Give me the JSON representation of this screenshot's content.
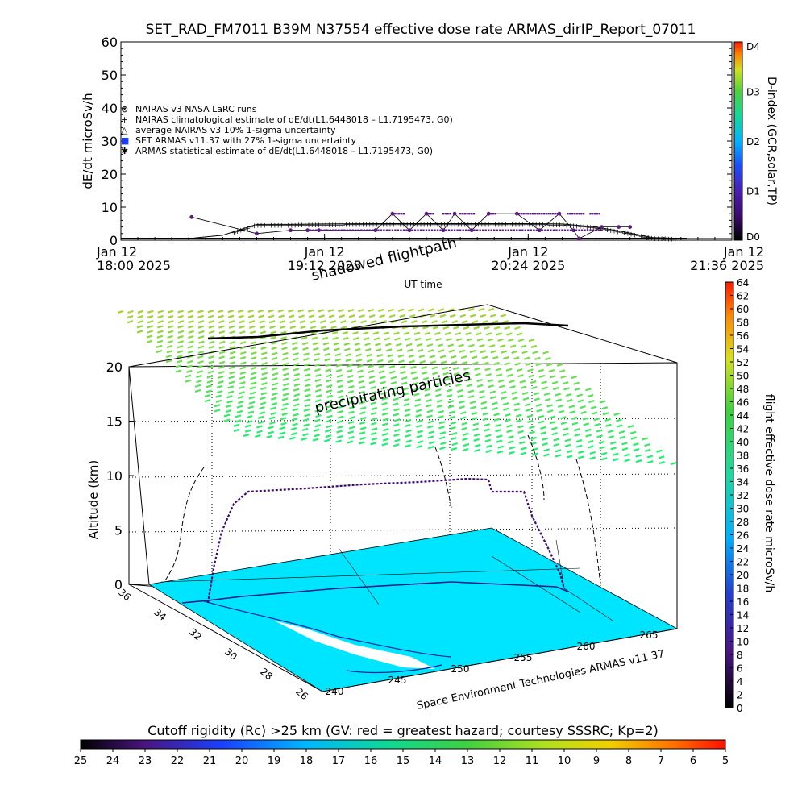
{
  "chart_data": [
    {
      "type": "scatter",
      "title": "SET_RAD_FM7011   B39M N37554 effective dose rate ARMAS_dirIP_Report_07011",
      "xlabel": "UT time",
      "ylabel": "dE/dt microSv/h",
      "ylim": [
        0,
        60
      ],
      "y_ticks": [
        "0",
        "10",
        "20",
        "30",
        "40",
        "50",
        "60"
      ],
      "x_ticks": [
        {
          "day": "Jan 12",
          "time": "18:00 2025"
        },
        {
          "day": "Jan 12",
          "time": "19:12 2025"
        },
        {
          "day": "Jan 12",
          "time": "20:24 2025"
        },
        {
          "day": "Jan 12",
          "time": "21:36 2025"
        }
      ],
      "xlim_minutes": [
        0,
        216
      ],
      "grid": false,
      "legend_position": "upper-left",
      "legend": [
        {
          "symbol": "⊗",
          "label": "NAIRAS v3 NASA LaRC runs"
        },
        {
          "symbol": "+",
          "label": "NAIRAS climatological estimate of dE/dt(L1.6448018 – L1.7195473, G0)"
        },
        {
          "symbol": "△",
          "label": "average NAIRAS v3 10% 1-sigma uncertainty"
        },
        {
          "symbol": "■",
          "label": "SET ARMAS v11.37 with 27% 1-sigma uncertainty"
        },
        {
          "symbol": "✱",
          "label": "ARMAS statistical estimate of dE/dt(L1.6448018 – L1.7195473, G0)"
        }
      ],
      "series": [
        {
          "name": "NAIRAS climatological estimate",
          "color": "#000000",
          "x": [
            0,
            24,
            36,
            48,
            60,
            72,
            90,
            108,
            126,
            144,
            156,
            168,
            178,
            188,
            200,
            216
          ],
          "y": [
            0.5,
            0.5,
            1.5,
            4.8,
            4.8,
            4.9,
            5.0,
            5.0,
            5.0,
            5.0,
            4.9,
            4.0,
            2.5,
            0.8,
            0.5,
            0.5
          ]
        },
        {
          "name": "SET ARMAS v11.37",
          "color": "#5a1e7a",
          "x": [
            25,
            48,
            60,
            66,
            70,
            90,
            96,
            102,
            108,
            114,
            118,
            124,
            130,
            140,
            148,
            155,
            160,
            162,
            170,
            176,
            180
          ],
          "y": [
            7,
            2,
            3,
            3,
            3,
            3,
            8,
            3,
            8,
            3,
            8,
            3,
            8,
            8,
            3,
            8,
            3,
            0.5,
            4,
            4,
            4
          ]
        }
      ],
      "dindex_label": "D-index (GCR,solar,TP)",
      "dindex_levels": [
        "D0",
        "D1",
        "D2",
        "D3",
        "D4"
      ],
      "dindex_values": [
        0,
        1,
        2,
        3,
        4
      ]
    },
    {
      "type": "scatter",
      "subtitle": "shadowed flightpath",
      "annotation": "precipitating particles",
      "credit": "Space Environment Technologies ARMAS v11.37",
      "zlabel": "Altitude (km)",
      "zlim": [
        0,
        20
      ],
      "z_ticks": [
        "0",
        "5",
        "10",
        "15",
        "20"
      ],
      "lat_ticks": [
        "36",
        "34",
        "32",
        "30",
        "28",
        "26"
      ],
      "lon_ticks": [
        "240",
        "245",
        "250",
        "255",
        "260",
        "265"
      ],
      "colorbar_label": "flight effective dose rate microSv/h",
      "colorbar_ticks": [
        "0",
        "2",
        "4",
        "6",
        "8",
        "10",
        "12",
        "14",
        "16",
        "18",
        "20",
        "22",
        "24",
        "26",
        "28",
        "30",
        "32",
        "34",
        "36",
        "38",
        "40",
        "42",
        "44",
        "46",
        "48",
        "50",
        "52",
        "54",
        "56",
        "58",
        "60",
        "62",
        "64"
      ],
      "colorbar_range": [
        0,
        64
      ],
      "flight_track": {
        "lon": [
          242.0,
          243.0,
          244.0,
          246.0,
          250.0,
          255.0,
          259.0,
          261.5,
          262.3,
          263.0
        ],
        "lat": [
          34.5,
          34.6,
          34.2,
          33.8,
          33.0,
          32.0,
          31.2,
          30.8,
          30.6,
          30.3
        ],
        "alt_km": [
          0.0,
          3.0,
          7.5,
          9.5,
          10.0,
          10.5,
          11.0,
          9.5,
          4.0,
          0.0
        ]
      }
    },
    {
      "type": "heatmap",
      "title": "Cutoff rigidity (Rc) >25 km (GV: red = greatest hazard; courtesy SSSRC; Kp=2)",
      "tick_labels": [
        "25",
        "24",
        "23",
        "22",
        "21",
        "20",
        "19",
        "18",
        "17",
        "16",
        "15",
        "14",
        "13",
        "12",
        "11",
        "10",
        "9",
        "8",
        "7",
        "6",
        "5"
      ],
      "range": [
        25,
        5
      ]
    }
  ]
}
